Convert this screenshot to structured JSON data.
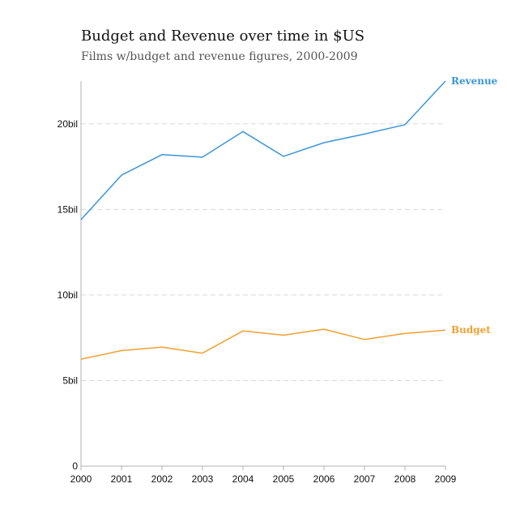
{
  "header": {
    "title": "Budget and Revenue over time in $US",
    "subtitle": "Films w/budget and revenue figures, 2000-2009"
  },
  "chart_data": {
    "type": "line",
    "title": "Budget and Revenue over time in $US",
    "subtitle": "Films w/budget and revenue figures, 2000-2009",
    "xlabel": "",
    "ylabel": "",
    "x": [
      2000,
      2001,
      2002,
      2003,
      2004,
      2005,
      2006,
      2007,
      2008,
      2009
    ],
    "ylim": [
      0,
      22.5
    ],
    "yticks": [
      0,
      5,
      10,
      15,
      20
    ],
    "ytick_labels": [
      "0",
      "5bil",
      "10bil",
      "15bil",
      "20bil"
    ],
    "grid": true,
    "legend": "inline labels at line ends",
    "series": [
      {
        "name": "Revenue",
        "color": "#3a96d9",
        "values": [
          14.4,
          17.0,
          18.2,
          18.05,
          19.55,
          18.1,
          18.9,
          19.4,
          19.95,
          22.5
        ]
      },
      {
        "name": "Budget",
        "color": "#f0a030",
        "values": [
          6.25,
          6.75,
          6.95,
          6.6,
          7.9,
          7.65,
          8.0,
          7.4,
          7.75,
          7.95
        ]
      }
    ]
  }
}
